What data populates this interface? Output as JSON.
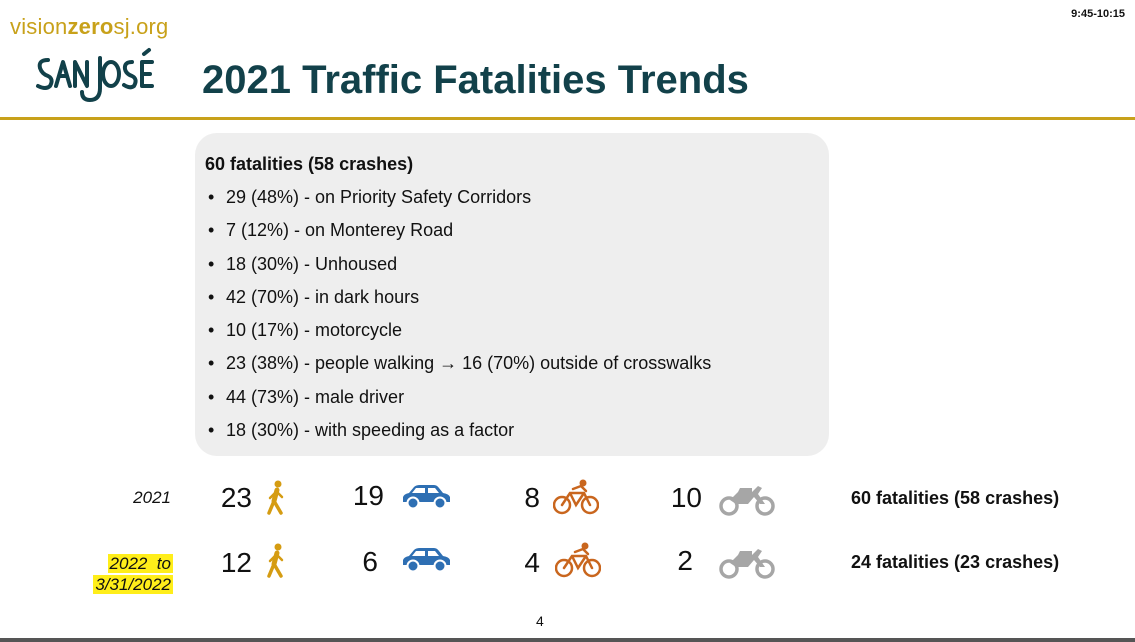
{
  "header": {
    "time": "9:45-10:15",
    "url_prefix": "vision",
    "url_bold": "zero",
    "url_suffix": "sj.org",
    "logo_text": "SAN JOSÉ",
    "title": "2021 Traffic Fatalities Trends"
  },
  "colors": {
    "brand_gold": "#c8a11a",
    "title_teal": "#12414a",
    "car_blue": "#2e6fb3",
    "bike_orange": "#c9661e",
    "moto_gray": "#a6a6a6",
    "highlight": "#ffee1a"
  },
  "summary": {
    "heading": "60 fatalities (58 crashes)",
    "items": [
      "29 (48%) - on Priority Safety Corridors",
      "7 (12%) - on Monterey Road",
      "18 (30%) - Unhoused",
      "42 (70%) - in dark hours",
      "10 (17%) - motorcycle",
      "23 (38%) - people walking → 16 (70%) outside of crosswalks",
      "44 (73%) - male driver",
      "18 (30%) - with speeding as a factor"
    ]
  },
  "rows": [
    {
      "label": "2021",
      "pedestrian": "23",
      "car": "19",
      "bicycle": "8",
      "motorcycle": "10",
      "total": "60 fatalities (58 crashes)"
    },
    {
      "label_line1": "2022  to",
      "label_line2": "3/31/2022",
      "pedestrian": "12",
      "car": "6",
      "bicycle": "4",
      "motorcycle": "2",
      "total": "24 fatalities (23 crashes)"
    }
  ],
  "icons": [
    "pedestrian-icon",
    "car-icon",
    "bicycle-icon",
    "motorcycle-icon"
  ],
  "page_number": "4"
}
